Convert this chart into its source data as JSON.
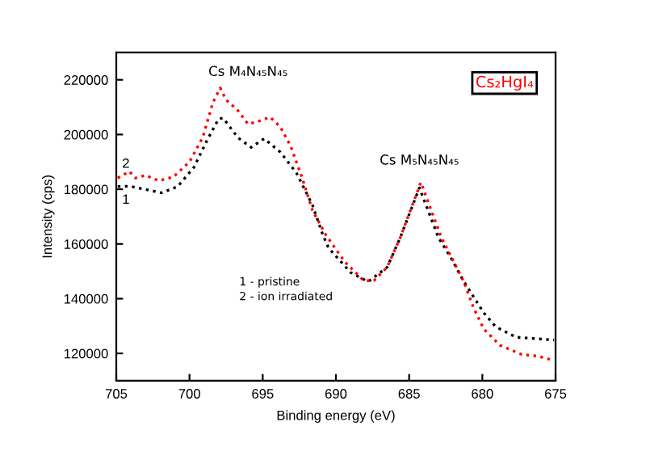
{
  "chart_data": {
    "type": "line",
    "title": "Cs₂HgI₄",
    "xlabel": "Binding energy (eV)",
    "ylabel": "Intensity (cps)",
    "xlim": [
      705,
      675
    ],
    "xticks": [
      705,
      700,
      695,
      690,
      685,
      680,
      675
    ],
    "ylim": [
      110000,
      230000
    ],
    "yticks": [
      120000,
      140000,
      160000,
      180000,
      200000,
      220000
    ],
    "line_style": "dotted",
    "grid": false,
    "legend": false,
    "series": [
      {
        "name": "1",
        "color": "#000000",
        "x": [
          704.9,
          704.1,
          701.9,
          700.8,
          699.7,
          698.8,
          698.0,
          697.7,
          696.7,
          695.8,
          694.9,
          693.8,
          692.7,
          691.6,
          690.9,
          690.5,
          689.0,
          687.8,
          686.5,
          685.6,
          684.3,
          683.0,
          682.1,
          681.3,
          680.6,
          679.9,
          679.1,
          677.7,
          675.1
        ],
        "values": [
          181000,
          181100,
          178700,
          181000,
          188000,
          197900,
          205800,
          206000,
          198900,
          195300,
          198500,
          193600,
          186000,
          174200,
          163400,
          158500,
          149600,
          146200,
          151500,
          162400,
          180500,
          162400,
          154500,
          146600,
          140700,
          134800,
          129800,
          125900,
          124900
        ]
      },
      {
        "name": "2",
        "color": "#ff0000",
        "x": [
          704.9,
          704.1,
          703.7,
          703.0,
          702.1,
          701.1,
          700.0,
          699.1,
          698.4,
          697.9,
          697.5,
          696.7,
          696.0,
          695.3,
          694.5,
          693.8,
          693.1,
          692.3,
          691.6,
          690.7,
          689.4,
          688.1,
          687.4,
          686.5,
          685.6,
          684.2,
          682.8,
          681.3,
          680.6,
          679.9,
          678.8,
          677.3,
          676.2,
          675.1
        ],
        "values": [
          184100,
          186500,
          184100,
          185100,
          183100,
          184500,
          190000,
          198900,
          211700,
          217000,
          212700,
          208800,
          203800,
          204800,
          206400,
          202800,
          195900,
          184100,
          172300,
          163400,
          153500,
          146600,
          146600,
          151500,
          162400,
          182500,
          162400,
          146600,
          136700,
          128900,
          123000,
          119600,
          119000,
          117400
        ]
      }
    ],
    "annotations": [
      "Cs M₄N₄₅N₄₅",
      "Cs M₅N₄₅N₄₅",
      "1 - pristine",
      "2 - ion irradiated"
    ]
  }
}
